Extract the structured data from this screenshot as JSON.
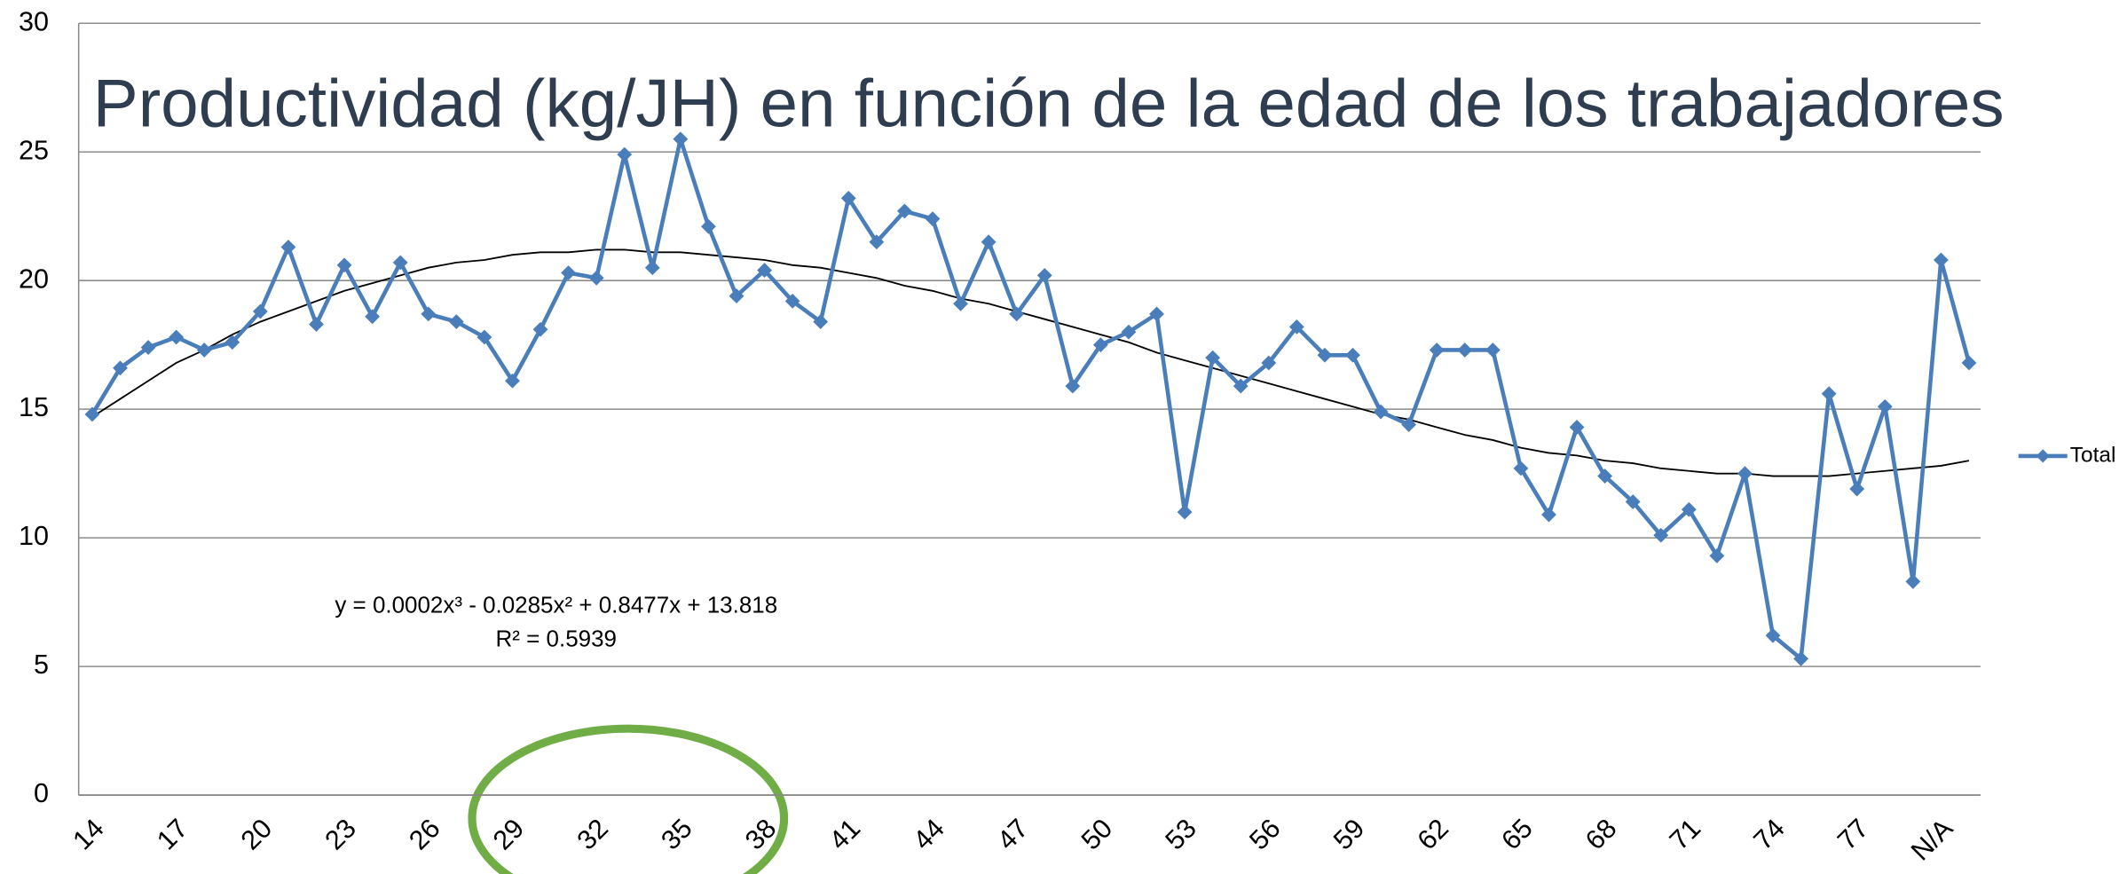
{
  "chart_data": {
    "type": "line",
    "title": "Productividad (kg/JH) en función de la edad de los trabajadores",
    "categories": [
      "14",
      null,
      null,
      "17",
      null,
      null,
      "20",
      null,
      null,
      "23",
      null,
      null,
      "26",
      null,
      null,
      "29",
      null,
      null,
      "32",
      null,
      null,
      "35",
      null,
      null,
      "38",
      null,
      null,
      "41",
      null,
      null,
      "44",
      null,
      null,
      "47",
      null,
      null,
      "50",
      null,
      null,
      "53",
      null,
      null,
      "56",
      null,
      null,
      "59",
      null,
      null,
      "62",
      null,
      null,
      "65",
      null,
      null,
      "68",
      null,
      null,
      "71",
      null,
      null,
      "74",
      null,
      null,
      "77",
      null,
      null,
      "N/A",
      null
    ],
    "series": [
      {
        "name": "Total",
        "color": "#4a7ebb",
        "values": [
          14.8,
          16.6,
          17.4,
          17.8,
          17.3,
          17.6,
          18.8,
          21.3,
          18.3,
          20.6,
          18.6,
          20.7,
          18.7,
          18.4,
          17.8,
          16.1,
          18.1,
          20.3,
          20.1,
          24.9,
          20.5,
          25.5,
          22.1,
          19.4,
          20.4,
          19.2,
          18.4,
          23.2,
          21.5,
          22.7,
          22.4,
          19.1,
          21.5,
          18.7,
          20.2,
          15.9,
          17.5,
          18.0,
          18.7,
          11.0,
          17.0,
          15.9,
          16.8,
          18.2,
          17.1,
          17.1,
          14.9,
          14.4,
          17.3,
          17.3,
          17.3,
          12.7,
          10.9,
          14.3,
          12.4,
          11.4,
          10.1,
          11.1,
          9.3,
          12.5,
          6.2,
          5.3,
          15.6,
          11.9,
          15.1,
          8.3,
          20.8,
          16.8
        ]
      }
    ],
    "trendline": {
      "color": "#000000",
      "values": [
        14.7,
        15.4,
        16.1,
        16.8,
        17.3,
        17.9,
        18.4,
        18.8,
        19.2,
        19.6,
        19.9,
        20.2,
        20.5,
        20.7,
        20.8,
        21.0,
        21.1,
        21.1,
        21.2,
        21.2,
        21.1,
        21.1,
        21.0,
        20.9,
        20.8,
        20.6,
        20.5,
        20.3,
        20.1,
        19.8,
        19.6,
        19.3,
        19.1,
        18.8,
        18.5,
        18.2,
        17.9,
        17.6,
        17.2,
        16.9,
        16.6,
        16.3,
        16.0,
        15.7,
        15.4,
        15.1,
        14.8,
        14.6,
        14.3,
        14.0,
        13.8,
        13.5,
        13.3,
        13.2,
        13.0,
        12.9,
        12.7,
        12.6,
        12.5,
        12.5,
        12.4,
        12.4,
        12.4,
        12.5,
        12.6,
        12.7,
        12.8,
        13.0
      ],
      "equation": "y = 0.0002x³ - 0.0285x² + 0.8477x + 13.818",
      "r_squared": "R² = 0.5939"
    },
    "ylim": [
      0,
      30
    ],
    "yticks": [
      0,
      5,
      10,
      15,
      20,
      25,
      30
    ],
    "grid": true,
    "legend": "right"
  }
}
